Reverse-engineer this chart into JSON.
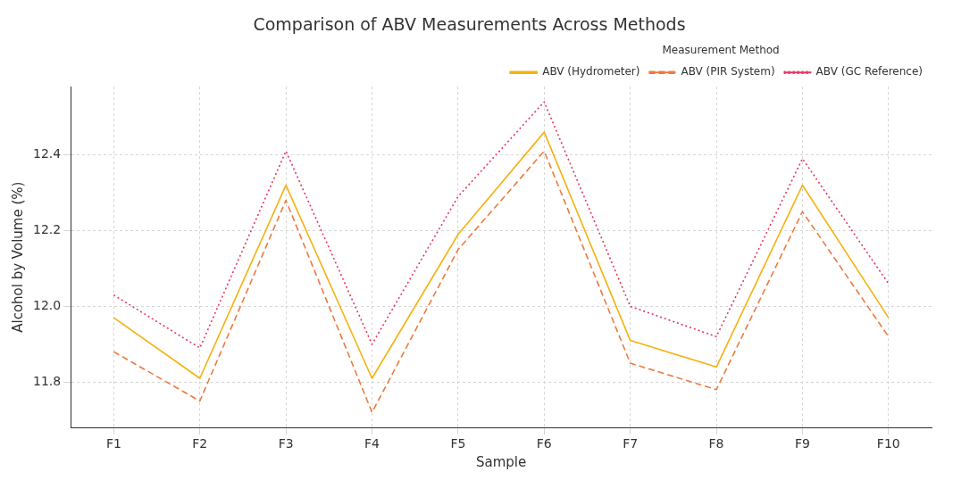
{
  "chart_data": {
    "type": "line",
    "title": "Comparison of ABV Measurements Across Methods",
    "xlabel": "Sample",
    "ylabel": "Alcohol by Volume (%)",
    "legend_title": "Measurement Method",
    "categories": [
      "F1",
      "F2",
      "F3",
      "F4",
      "F5",
      "F6",
      "F7",
      "F8",
      "F9",
      "F10"
    ],
    "series": [
      {
        "name": "ABV (Hydrometer)",
        "color": "#f6b10f",
        "line_style": "solid",
        "values": [
          11.97,
          11.81,
          12.32,
          11.81,
          12.19,
          12.46,
          11.91,
          11.84,
          12.32,
          11.97
        ]
      },
      {
        "name": "ABV (PIR System)",
        "color": "#ee7a3e",
        "line_style": "dashed",
        "values": [
          11.88,
          11.75,
          12.28,
          11.72,
          12.15,
          12.41,
          11.85,
          11.78,
          12.25,
          11.92
        ]
      },
      {
        "name": "ABV (GC Reference)",
        "color": "#e8365d",
        "line_style": "dotted",
        "values": [
          12.03,
          11.89,
          12.41,
          11.9,
          12.29,
          12.54,
          12.0,
          11.92,
          12.39,
          12.06
        ]
      }
    ],
    "ylim": [
      11.68,
      12.58
    ],
    "yticks": [
      {
        "value": 11.8,
        "label": "11.8"
      },
      {
        "value": 12.0,
        "label": "12.0"
      },
      {
        "value": 12.2,
        "label": "12.2"
      },
      {
        "value": 12.4,
        "label": "12.4"
      }
    ],
    "grid": true,
    "legend": "top right",
    "marker": "none"
  }
}
